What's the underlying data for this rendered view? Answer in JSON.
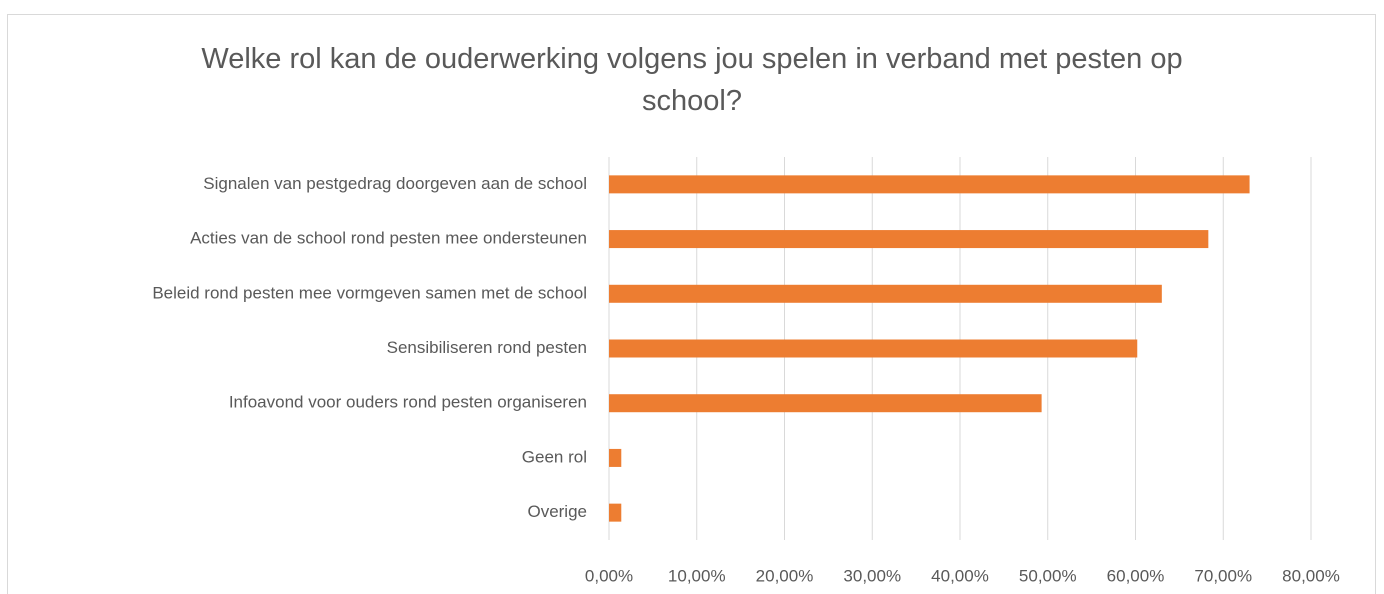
{
  "chart_data": {
    "type": "bar",
    "orientation": "horizontal",
    "title": "Welke rol kan de ouderwerking volgens jou spelen in verband met pesten op school?",
    "categories": [
      "Signalen van pestgedrag doorgeven aan de school",
      "Acties van de school rond pesten mee ondersteunen",
      "Beleid rond pesten mee vormgeven samen met de school",
      "Sensibiliseren rond pesten",
      "Infoavond voor ouders rond pesten organiseren",
      "Geen rol",
      "Overige"
    ],
    "values": [
      73,
      68.3,
      63,
      60.2,
      49.3,
      1.4,
      1.4
    ],
    "color": "#ed7d31",
    "xlim": [
      0,
      80
    ],
    "xticks": [
      {
        "value": 0,
        "label": "0,00%"
      },
      {
        "value": 10,
        "label": "10,00%"
      },
      {
        "value": 20,
        "label": "20,00%"
      },
      {
        "value": 30,
        "label": "30,00%"
      },
      {
        "value": 40,
        "label": "40,00%"
      },
      {
        "value": 50,
        "label": "50,00%"
      },
      {
        "value": 60,
        "label": "60,00%"
      },
      {
        "value": 70,
        "label": "70,00%"
      },
      {
        "value": 80,
        "label": "80,00%"
      }
    ],
    "grid": true
  }
}
